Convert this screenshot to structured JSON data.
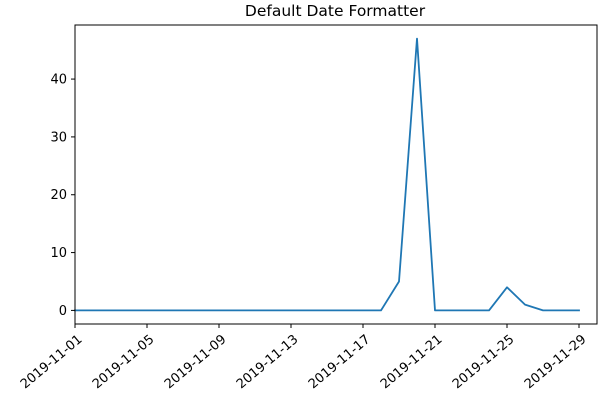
{
  "chart_data": {
    "type": "line",
    "title": "Default Date Formatter",
    "xlabel": "",
    "ylabel": "",
    "x": [
      "2019-11-01",
      "2019-11-02",
      "2019-11-03",
      "2019-11-04",
      "2019-11-05",
      "2019-11-06",
      "2019-11-07",
      "2019-11-08",
      "2019-11-09",
      "2019-11-10",
      "2019-11-11",
      "2019-11-12",
      "2019-11-13",
      "2019-11-14",
      "2019-11-15",
      "2019-11-16",
      "2019-11-17",
      "2019-11-18",
      "2019-11-19",
      "2019-11-20",
      "2019-11-21",
      "2019-11-22",
      "2019-11-23",
      "2019-11-24",
      "2019-11-25",
      "2019-11-26",
      "2019-11-27",
      "2019-11-28",
      "2019-11-29"
    ],
    "series": [
      {
        "values": [
          0,
          0,
          0,
          0,
          0,
          0,
          0,
          0,
          0,
          0,
          0,
          0,
          0,
          0,
          0,
          0,
          0,
          0,
          5,
          47,
          0,
          0,
          0,
          0,
          4,
          1,
          0,
          0,
          0
        ]
      }
    ],
    "xlim": [
      "2019-11-01",
      "2019-11-30"
    ],
    "ylim": [
      -2.35,
      49.35
    ],
    "x_ticks": [
      "2019-11-01",
      "2019-11-05",
      "2019-11-09",
      "2019-11-13",
      "2019-11-17",
      "2019-11-21",
      "2019-11-25",
      "2019-11-29"
    ],
    "y_ticks": [
      "0",
      "10",
      "20",
      "30",
      "40"
    ],
    "grid": false,
    "line_color": "#1f77b4"
  }
}
